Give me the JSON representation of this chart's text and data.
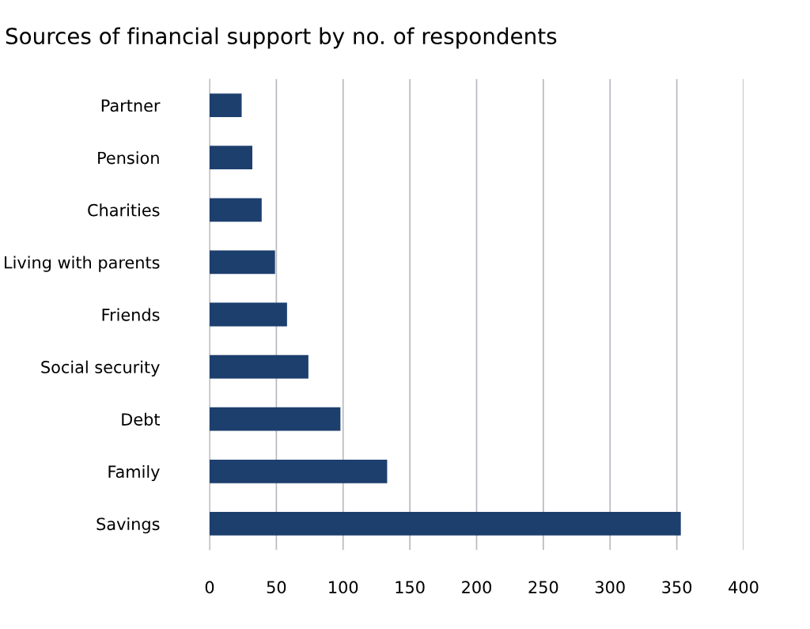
{
  "chart_data": {
    "type": "bar",
    "orientation": "horizontal",
    "title": "Sources of financial support by no. of respondents",
    "categories": [
      "Partner",
      "Pension",
      "Charities",
      "Living with parents",
      "Friends",
      "Social security",
      "Debt",
      "Family",
      "Savings"
    ],
    "values": [
      24,
      32,
      39,
      49,
      58,
      74,
      98,
      133,
      353
    ],
    "color": "#1d3f6e",
    "xlim": [
      0,
      400
    ],
    "xticks": [
      0,
      50,
      100,
      150,
      200,
      250,
      300,
      350,
      400
    ],
    "grid": "x",
    "legend": false
  }
}
